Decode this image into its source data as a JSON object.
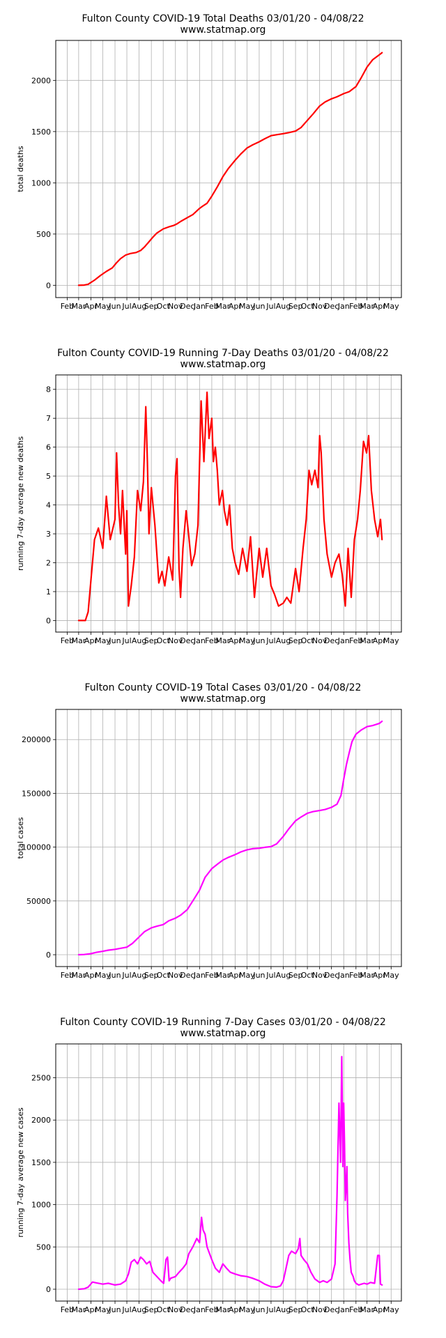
{
  "charts": [
    {
      "title": "Fulton County COVID-19 Total Deaths 03/01/20 - 04/08/22",
      "subtitle": "www.statmap.org",
      "ylabel": "total deaths",
      "color": "#ff0000",
      "ylim": [
        -120,
        2390
      ],
      "yticks": [
        0,
        500,
        1000,
        1500,
        2000
      ],
      "ytick_labels": [
        "0",
        "500",
        "1000",
        "1500",
        "2000"
      ]
    },
    {
      "title": "Fulton County COVID-19 Running 7-Day Deaths 03/01/20 - 04/08/22",
      "subtitle": "www.statmap.org",
      "ylabel": "running 7-day average new deaths",
      "color": "#ff0000",
      "ylim": [
        -0.4,
        8.5
      ],
      "yticks": [
        0,
        1,
        2,
        3,
        4,
        5,
        6,
        7,
        8
      ],
      "ytick_labels": [
        "0",
        "1",
        "2",
        "3",
        "4",
        "5",
        "6",
        "7",
        "8"
      ]
    },
    {
      "title": "Fulton County COVID-19 Total Cases 03/01/20 - 04/08/22",
      "subtitle": "www.statmap.org",
      "ylabel": "total cases",
      "color": "#ff00ff",
      "ylim": [
        -11000,
        228000
      ],
      "yticks": [
        0,
        50000,
        100000,
        150000,
        200000
      ],
      "ytick_labels": [
        "0",
        "50000",
        "100000",
        "150000",
        "200000"
      ]
    },
    {
      "title": "Fulton County COVID-19 Running 7-Day Cases 03/01/20 - 04/08/22",
      "subtitle": "www.statmap.org",
      "ylabel": "running 7-day average new cases",
      "color": "#ff00ff",
      "ylim": [
        -140,
        2900
      ],
      "yticks": [
        0,
        500,
        1000,
        1500,
        2000,
        2500
      ],
      "ytick_labels": [
        "0",
        "500",
        "1000",
        "1500",
        "2000",
        "2500"
      ]
    }
  ],
  "x_axis": {
    "months": [
      "Feb",
      "Mar",
      "Apr",
      "May",
      "Jun",
      "Jul",
      "Aug",
      "Sep",
      "Oct",
      "Nov",
      "Dec",
      "Jan",
      "Feb",
      "Mar",
      "Apr",
      "May",
      "Jun",
      "Jul",
      "Aug",
      "Sep",
      "Oct",
      "Nov",
      "Dec",
      "Jan",
      "Feb",
      "Mar",
      "Apr",
      "May"
    ],
    "tick_dates": [
      "2020-02-01",
      "2020-03-01",
      "2020-04-01",
      "2020-05-01",
      "2020-06-01",
      "2020-07-01",
      "2020-08-01",
      "2020-09-01",
      "2020-10-01",
      "2020-11-01",
      "2020-12-01",
      "2021-01-01",
      "2021-02-01",
      "2021-03-01",
      "2021-04-01",
      "2021-05-01",
      "2021-06-01",
      "2021-07-01",
      "2021-08-01",
      "2021-09-01",
      "2021-10-01",
      "2021-11-01",
      "2021-12-01",
      "2022-01-01",
      "2022-02-01",
      "2022-03-01",
      "2022-04-01",
      "2022-05-01"
    ],
    "xlim": [
      "2020-01-03",
      "2022-05-27"
    ]
  },
  "chart_data": [
    {
      "type": "line",
      "title": "Fulton County COVID-19 Total Deaths 03/01/20 - 04/08/22",
      "ylabel": "total deaths",
      "grid": true,
      "series": [
        {
          "x": [
            "2020-03-01",
            "2020-03-15",
            "2020-03-25",
            "2020-04-10",
            "2020-04-25",
            "2020-05-10",
            "2020-05-25",
            "2020-06-05",
            "2020-06-15",
            "2020-06-28",
            "2020-07-10",
            "2020-07-25",
            "2020-08-05",
            "2020-08-15",
            "2020-08-25",
            "2020-09-05",
            "2020-09-15",
            "2020-10-01",
            "2020-10-15",
            "2020-10-28",
            "2020-11-05",
            "2020-11-15",
            "2020-12-01",
            "2020-12-15",
            "2021-01-01",
            "2021-01-10",
            "2021-01-20",
            "2021-02-01",
            "2021-02-15",
            "2021-03-01",
            "2021-03-15",
            "2021-04-01",
            "2021-04-15",
            "2021-05-01",
            "2021-05-15",
            "2021-06-01",
            "2021-06-15",
            "2021-07-01",
            "2021-07-15",
            "2021-08-01",
            "2021-08-15",
            "2021-09-01",
            "2021-09-15",
            "2021-10-01",
            "2021-10-15",
            "2021-11-01",
            "2021-11-15",
            "2021-12-01",
            "2021-12-15",
            "2022-01-01",
            "2022-01-15",
            "2022-02-01",
            "2022-02-15",
            "2022-03-01",
            "2022-03-15",
            "2022-04-01",
            "2022-04-08"
          ],
          "y": [
            0,
            2,
            10,
            50,
            95,
            135,
            170,
            220,
            260,
            295,
            310,
            320,
            340,
            375,
            420,
            470,
            510,
            550,
            570,
            585,
            600,
            625,
            660,
            690,
            750,
            775,
            800,
            870,
            960,
            1060,
            1140,
            1220,
            1280,
            1340,
            1370,
            1400,
            1430,
            1460,
            1470,
            1480,
            1490,
            1505,
            1540,
            1610,
            1670,
            1750,
            1790,
            1820,
            1840,
            1870,
            1890,
            1940,
            2030,
            2130,
            2200,
            2250,
            2270
          ]
        }
      ]
    },
    {
      "type": "line",
      "title": "Fulton County COVID-19 Running 7-Day Deaths 03/01/20 - 04/08/22",
      "ylabel": "running 7-day average new deaths",
      "grid": true,
      "series": [
        {
          "x": [
            "2020-03-01",
            "2020-03-10",
            "2020-03-18",
            "2020-03-25",
            "2020-04-01",
            "2020-04-10",
            "2020-04-20",
            "2020-05-01",
            "2020-05-10",
            "2020-05-20",
            "2020-06-01",
            "2020-06-05",
            "2020-06-10",
            "2020-06-15",
            "2020-06-20",
            "2020-06-28",
            "2020-07-01",
            "2020-07-05",
            "2020-07-12",
            "2020-07-20",
            "2020-07-28",
            "2020-08-05",
            "2020-08-12",
            "2020-08-18",
            "2020-08-22",
            "2020-08-26",
            "2020-09-01",
            "2020-09-10",
            "2020-09-20",
            "2020-09-28",
            "2020-10-05",
            "2020-10-15",
            "2020-10-25",
            "2020-11-01",
            "2020-11-05",
            "2020-11-10",
            "2020-11-14",
            "2020-11-20",
            "2020-11-28",
            "2020-12-05",
            "2020-12-12",
            "2020-12-20",
            "2020-12-28",
            "2021-01-05",
            "2021-01-12",
            "2021-01-20",
            "2021-01-25",
            "2021-02-01",
            "2021-02-05",
            "2021-02-10",
            "2021-02-15",
            "2021-02-20",
            "2021-02-28",
            "2021-03-05",
            "2021-03-12",
            "2021-03-18",
            "2021-03-25",
            "2021-04-01",
            "2021-04-10",
            "2021-04-20",
            "2021-05-01",
            "2021-05-10",
            "2021-05-20",
            "2021-06-01",
            "2021-06-10",
            "2021-06-20",
            "2021-07-01",
            "2021-07-10",
            "2021-07-20",
            "2021-08-01",
            "2021-08-10",
            "2021-08-20",
            "2021-09-01",
            "2021-09-10",
            "2021-09-20",
            "2021-09-28",
            "2021-10-05",
            "2021-10-12",
            "2021-10-20",
            "2021-10-28",
            "2021-11-01",
            "2021-11-05",
            "2021-11-12",
            "2021-11-20",
            "2021-12-01",
            "2021-12-10",
            "2021-12-20",
            "2021-12-28",
            "2022-01-05",
            "2022-01-12",
            "2022-01-20",
            "2022-01-28",
            "2022-02-05",
            "2022-02-12",
            "2022-02-20",
            "2022-02-28",
            "2022-03-05",
            "2022-03-12",
            "2022-03-20",
            "2022-03-28",
            "2022-04-04",
            "2022-04-08"
          ],
          "y": [
            0,
            0,
            0,
            0.3,
            1.4,
            2.8,
            3.2,
            2.5,
            4.3,
            2.8,
            3.5,
            5.8,
            4.0,
            3.0,
            4.5,
            2.3,
            3.8,
            0.5,
            1.2,
            2.2,
            4.5,
            3.8,
            4.8,
            7.4,
            5.5,
            3.0,
            4.6,
            3.3,
            1.3,
            1.7,
            1.2,
            2.2,
            1.4,
            5.0,
            5.6,
            1.8,
            0.8,
            2.5,
            3.8,
            2.9,
            1.9,
            2.3,
            3.3,
            7.6,
            5.5,
            7.9,
            6.3,
            7.0,
            5.5,
            6.0,
            5.2,
            4.0,
            4.5,
            3.8,
            3.3,
            4.0,
            2.5,
            2.0,
            1.6,
            2.5,
            1.7,
            2.9,
            0.8,
            2.5,
            1.5,
            2.5,
            1.2,
            0.9,
            0.5,
            0.6,
            0.8,
            0.6,
            1.8,
            1.0,
            2.5,
            3.5,
            5.2,
            4.7,
            5.2,
            4.6,
            6.4,
            5.8,
            3.5,
            2.3,
            1.5,
            2.0,
            2.3,
            1.6,
            0.5,
            2.5,
            0.8,
            2.8,
            3.5,
            4.5,
            6.2,
            5.8,
            6.4,
            4.5,
            3.5,
            2.9,
            3.5,
            2.8
          ]
        }
      ]
    },
    {
      "type": "line",
      "title": "Fulton County COVID-19 Total Cases 03/01/20 - 04/08/22",
      "ylabel": "total cases",
      "grid": true,
      "series": [
        {
          "x": [
            "2020-03-01",
            "2020-03-15",
            "2020-04-01",
            "2020-04-15",
            "2020-05-01",
            "2020-05-15",
            "2020-06-01",
            "2020-06-15",
            "2020-07-01",
            "2020-07-15",
            "2020-08-01",
            "2020-08-15",
            "2020-09-01",
            "2020-09-15",
            "2020-10-01",
            "2020-10-15",
            "2020-11-01",
            "2020-11-15",
            "2020-12-01",
            "2020-12-15",
            "2021-01-01",
            "2021-01-15",
            "2021-02-01",
            "2021-02-15",
            "2021-03-01",
            "2021-03-15",
            "2021-04-01",
            "2021-04-15",
            "2021-05-01",
            "2021-05-15",
            "2021-06-01",
            "2021-06-15",
            "2021-07-01",
            "2021-07-15",
            "2021-08-01",
            "2021-08-15",
            "2021-09-01",
            "2021-09-15",
            "2021-10-01",
            "2021-10-15",
            "2021-11-01",
            "2021-11-15",
            "2021-12-01",
            "2021-12-15",
            "2021-12-25",
            "2022-01-01",
            "2022-01-08",
            "2022-01-15",
            "2022-01-22",
            "2022-02-01",
            "2022-02-15",
            "2022-03-01",
            "2022-03-15",
            "2022-04-01",
            "2022-04-08"
          ],
          "y": [
            0,
            200,
            1000,
            2200,
            3200,
            4200,
            5000,
            6000,
            7000,
            10500,
            16500,
            21500,
            25000,
            26500,
            28000,
            31500,
            34000,
            37000,
            42000,
            50000,
            60000,
            72000,
            80000,
            84000,
            88000,
            90500,
            93000,
            95500,
            97500,
            98500,
            99000,
            99800,
            100500,
            103000,
            110000,
            117000,
            124500,
            128000,
            131500,
            133000,
            134000,
            135000,
            137000,
            140000,
            148000,
            163000,
            177000,
            188000,
            198000,
            205000,
            209000,
            212000,
            213000,
            215000,
            217000
          ]
        }
      ]
    },
    {
      "type": "line",
      "title": "Fulton County COVID-19 Running 7-Day Cases 03/01/20 - 04/08/22",
      "ylabel": "running 7-day average new cases",
      "grid": true,
      "series": [
        {
          "x": [
            "2020-03-01",
            "2020-03-15",
            "2020-03-25",
            "2020-04-05",
            "2020-04-15",
            "2020-05-01",
            "2020-05-15",
            "2020-06-01",
            "2020-06-15",
            "2020-06-28",
            "2020-07-05",
            "2020-07-12",
            "2020-07-20",
            "2020-07-28",
            "2020-08-05",
            "2020-08-12",
            "2020-08-20",
            "2020-08-28",
            "2020-09-05",
            "2020-09-15",
            "2020-09-25",
            "2020-10-02",
            "2020-10-08",
            "2020-10-12",
            "2020-10-16",
            "2020-10-20",
            "2020-11-01",
            "2020-11-10",
            "2020-11-20",
            "2020-11-28",
            "2020-12-05",
            "2020-12-15",
            "2020-12-25",
            "2021-01-01",
            "2021-01-06",
            "2021-01-10",
            "2021-01-15",
            "2021-01-20",
            "2021-02-01",
            "2021-02-10",
            "2021-02-20",
            "2021-03-01",
            "2021-03-10",
            "2021-03-20",
            "2021-04-01",
            "2021-04-15",
            "2021-05-01",
            "2021-05-15",
            "2021-06-01",
            "2021-06-15",
            "2021-07-01",
            "2021-07-15",
            "2021-07-25",
            "2021-08-01",
            "2021-08-08",
            "2021-08-15",
            "2021-08-22",
            "2021-09-01",
            "2021-09-08",
            "2021-09-12",
            "2021-09-15",
            "2021-09-22",
            "2021-10-01",
            "2021-10-10",
            "2021-10-20",
            "2021-11-01",
            "2021-11-10",
            "2021-11-20",
            "2021-12-01",
            "2021-12-10",
            "2021-12-15",
            "2021-12-20",
            "2021-12-24",
            "2021-12-27",
            "2021-12-30",
            "2022-01-01",
            "2022-01-03",
            "2022-01-05",
            "2022-01-07",
            "2022-01-09",
            "2022-01-11",
            "2022-01-14",
            "2022-01-17",
            "2022-01-20",
            "2022-01-25",
            "2022-01-28",
            "2022-02-01",
            "2022-02-08",
            "2022-02-15",
            "2022-02-22",
            "2022-03-01",
            "2022-03-10",
            "2022-03-20",
            "2022-03-28",
            "2022-04-01",
            "2022-04-04",
            "2022-04-08"
          ],
          "y": [
            0,
            5,
            25,
            85,
            75,
            60,
            70,
            50,
            60,
            100,
            180,
            320,
            350,
            300,
            380,
            350,
            300,
            330,
            200,
            150,
            100,
            70,
            350,
            380,
            100,
            130,
            150,
            200,
            250,
            300,
            420,
            500,
            600,
            550,
            850,
            700,
            650,
            500,
            350,
            250,
            200,
            300,
            250,
            200,
            180,
            160,
            150,
            130,
            100,
            60,
            30,
            25,
            40,
            100,
            250,
            400,
            450,
            420,
            480,
            600,
            400,
            350,
            300,
            200,
            120,
            80,
            100,
            80,
            120,
            300,
            1100,
            2200,
            1500,
            2750,
            1450,
            2200,
            1700,
            1050,
            1200,
            1450,
            900,
            550,
            350,
            200,
            150,
            100,
            70,
            50,
            60,
            70,
            60,
            80,
            70,
            400,
            400,
            60,
            50
          ]
        }
      ]
    }
  ]
}
